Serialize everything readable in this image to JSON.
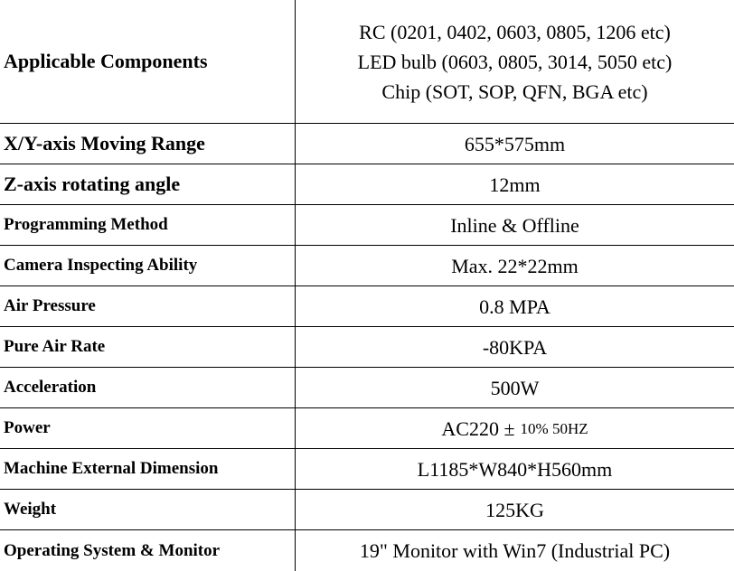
{
  "table": {
    "rows": [
      {
        "label": "Applicable Components",
        "value": [
          "RC (0201, 0402, 0603, 0805, 1206 etc)",
          "LED bulb (0603, 0805, 3014, 5050 etc)",
          "Chip (SOT, SOP, QFN, BGA etc)"
        ]
      },
      {
        "label": "X/Y-axis Moving Range",
        "value": [
          "655*575mm"
        ]
      },
      {
        "label": "Z-axis rotating angle",
        "value": [
          "12mm"
        ]
      },
      {
        "label": "Programming Method",
        "value": [
          "Inline & Offline"
        ]
      },
      {
        "label": "Camera Inspecting Ability",
        "value": [
          "Max. 22*22mm"
        ]
      },
      {
        "label": "Air Pressure",
        "value": [
          "0.8 MPA"
        ]
      },
      {
        "label": "Pure Air Rate",
        "value": [
          "-80KPA"
        ]
      },
      {
        "label": "Acceleration",
        "value": [
          "500W"
        ]
      },
      {
        "label": "Power",
        "value": [
          "AC220 ±",
          "10% 50HZ"
        ],
        "inline": true
      },
      {
        "label": "Machine External Dimension",
        "value": [
          "L1185*W840*H560mm"
        ]
      },
      {
        "label": "Weight",
        "value": [
          "125KG"
        ]
      },
      {
        "label": "Operating System & Monitor",
        "value": [
          "19\" Monitor with Win7 (Industrial PC)"
        ]
      }
    ]
  }
}
